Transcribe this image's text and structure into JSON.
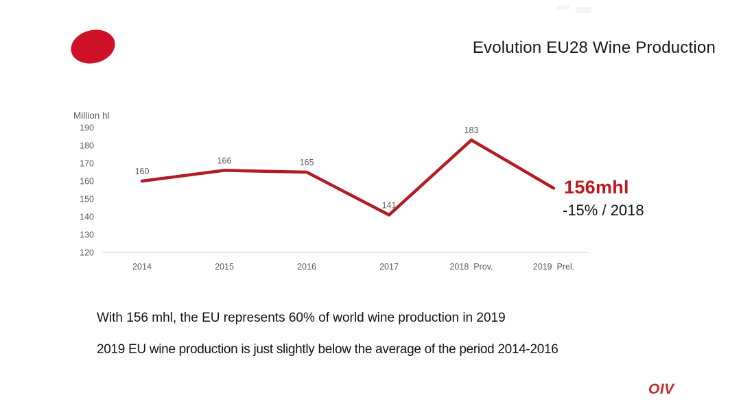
{
  "slide": {
    "title": "Evolution EU28 Wine Production",
    "logo_oval_color": "#ce1126",
    "footer_logo": "OIV",
    "annotation": {
      "value": "156mhl",
      "value_color": "#c0161c",
      "change": "-15% / 2018"
    },
    "notes": [
      "With 156 mhl, the EU represents 60% of world wine production in 2019",
      "2019 EU wine production is just slightly below the average of the period 2014-2016"
    ]
  },
  "chart_data": {
    "type": "line",
    "title": "",
    "xlabel": "",
    "ylabel": "Million hl",
    "categories": [
      "2014",
      "2015",
      "2016",
      "2017",
      "2018",
      "2019"
    ],
    "x_tick_labels": [
      "2014",
      "2015",
      "2016",
      "2017",
      "2018  Prov.",
      "2019  Prel."
    ],
    "values": [
      160,
      166,
      165,
      141,
      183,
      156
    ],
    "data_labels": [
      "160",
      "166",
      "165",
      "141",
      "183",
      ""
    ],
    "ylim": [
      120,
      190
    ],
    "yticks": [
      190,
      180,
      170,
      160,
      150,
      140,
      130,
      120
    ],
    "grid": false,
    "legend": "none",
    "line_color": "#b31b22",
    "tick_color": "#595959",
    "axis_line_color": "#e2e2e2"
  }
}
